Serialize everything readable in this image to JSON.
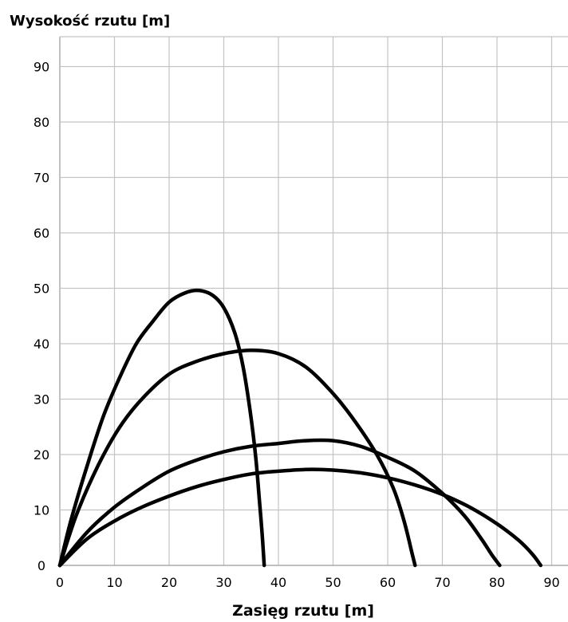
{
  "chart_data": {
    "type": "line",
    "title": "",
    "ylabel": "Wysokość rzutu [m]",
    "xlabel": "Zasięg rzutu [m]",
    "xlim": [
      0,
      93
    ],
    "ylim": [
      0,
      96
    ],
    "x_ticks": [
      "0",
      "10",
      "20",
      "30",
      "40",
      "50",
      "60",
      "70",
      "80",
      "90"
    ],
    "y_ticks": [
      "0",
      "10",
      "20",
      "30",
      "40",
      "50",
      "60",
      "70",
      "80",
      "90"
    ],
    "grid": true,
    "series": [
      {
        "values": [
          [
            0,
            0
          ],
          [
            2,
            8
          ],
          [
            5,
            18
          ],
          [
            8,
            27
          ],
          [
            11,
            34
          ],
          [
            14,
            40
          ],
          [
            17,
            44
          ],
          [
            20,
            47.5
          ],
          [
            23,
            49.2
          ],
          [
            25.5,
            49.6
          ],
          [
            28,
            48.7
          ],
          [
            30,
            46.5
          ],
          [
            32,
            42
          ],
          [
            33.5,
            36
          ],
          [
            34.8,
            28
          ],
          [
            35.8,
            20
          ],
          [
            36.5,
            12
          ],
          [
            37,
            6
          ],
          [
            37.4,
            0
          ]
        ]
      },
      {
        "values": [
          [
            0,
            0
          ],
          [
            3,
            9
          ],
          [
            7,
            18
          ],
          [
            11,
            25
          ],
          [
            15,
            30
          ],
          [
            20,
            34.5
          ],
          [
            25,
            36.8
          ],
          [
            30,
            38.2
          ],
          [
            35,
            38.8
          ],
          [
            40,
            38.2
          ],
          [
            45,
            35.8
          ],
          [
            50,
            31
          ],
          [
            54,
            26
          ],
          [
            58,
            20
          ],
          [
            61,
            14
          ],
          [
            63,
            8
          ],
          [
            64.5,
            2
          ],
          [
            65,
            0
          ]
        ]
      },
      {
        "values": [
          [
            0,
            0
          ],
          [
            5,
            6
          ],
          [
            10,
            10.5
          ],
          [
            15,
            14
          ],
          [
            20,
            17
          ],
          [
            25,
            19
          ],
          [
            30,
            20.5
          ],
          [
            35,
            21.5
          ],
          [
            40,
            22
          ],
          [
            45,
            22.5
          ],
          [
            50,
            22.5
          ],
          [
            55,
            21.5
          ],
          [
            60,
            19.5
          ],
          [
            65,
            17
          ],
          [
            70,
            13
          ],
          [
            74,
            9
          ],
          [
            77,
            5
          ],
          [
            79,
            2
          ],
          [
            80.5,
            0
          ]
        ]
      },
      {
        "values": [
          [
            0,
            0
          ],
          [
            5,
            4.8
          ],
          [
            10,
            8
          ],
          [
            15,
            10.5
          ],
          [
            20,
            12.5
          ],
          [
            25,
            14.2
          ],
          [
            30,
            15.5
          ],
          [
            35,
            16.5
          ],
          [
            40,
            17
          ],
          [
            45,
            17.3
          ],
          [
            50,
            17.2
          ],
          [
            55,
            16.7
          ],
          [
            60,
            15.8
          ],
          [
            65,
            14.5
          ],
          [
            70,
            12.8
          ],
          [
            75,
            10.5
          ],
          [
            80,
            7.5
          ],
          [
            84,
            4.5
          ],
          [
            86.5,
            2
          ],
          [
            88,
            0
          ]
        ]
      }
    ]
  }
}
